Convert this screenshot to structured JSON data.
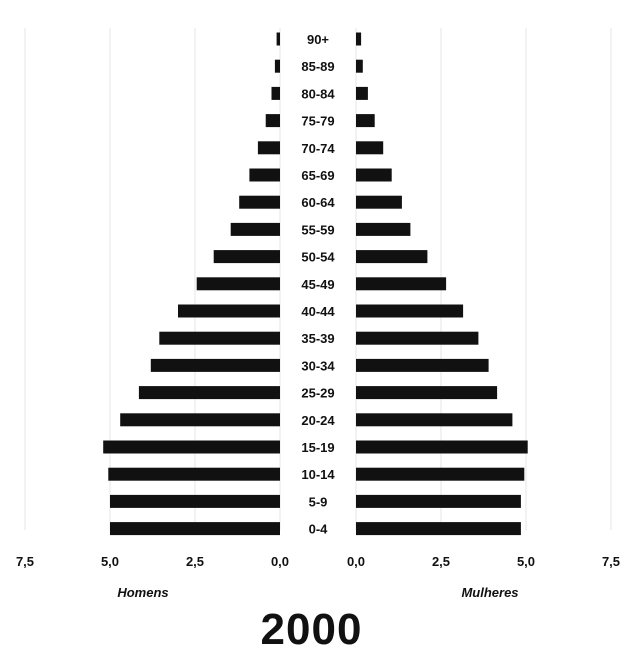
{
  "chart_data": {
    "type": "bar",
    "title": "2000",
    "unit_hint": "",
    "categories": [
      "0-4",
      "5-9",
      "10-14",
      "15-19",
      "20-24",
      "25-29",
      "30-34",
      "35-39",
      "40-44",
      "45-49",
      "50-54",
      "55-59",
      "60-64",
      "65-69",
      "70-74",
      "75-79",
      "80-84",
      "85-89",
      "90+"
    ],
    "series": [
      {
        "name": "Homens",
        "side": "left",
        "values": [
          5.0,
          5.0,
          5.05,
          5.2,
          4.7,
          4.15,
          3.8,
          3.55,
          3.0,
          2.45,
          1.95,
          1.45,
          1.2,
          0.9,
          0.65,
          0.42,
          0.25,
          0.15,
          0.1
        ]
      },
      {
        "name": "Mulheres",
        "side": "right",
        "values": [
          4.85,
          4.85,
          4.95,
          5.05,
          4.6,
          4.15,
          3.9,
          3.6,
          3.15,
          2.65,
          2.1,
          1.6,
          1.35,
          1.05,
          0.8,
          0.55,
          0.35,
          0.2,
          0.15
        ]
      }
    ],
    "x_ticks": [
      "7,5",
      "5,0",
      "2,5",
      "0,0"
    ],
    "xlim": [
      0,
      7.5
    ],
    "grid": true,
    "bar_color": "#111111",
    "grid_color": "#e6e6e6"
  }
}
